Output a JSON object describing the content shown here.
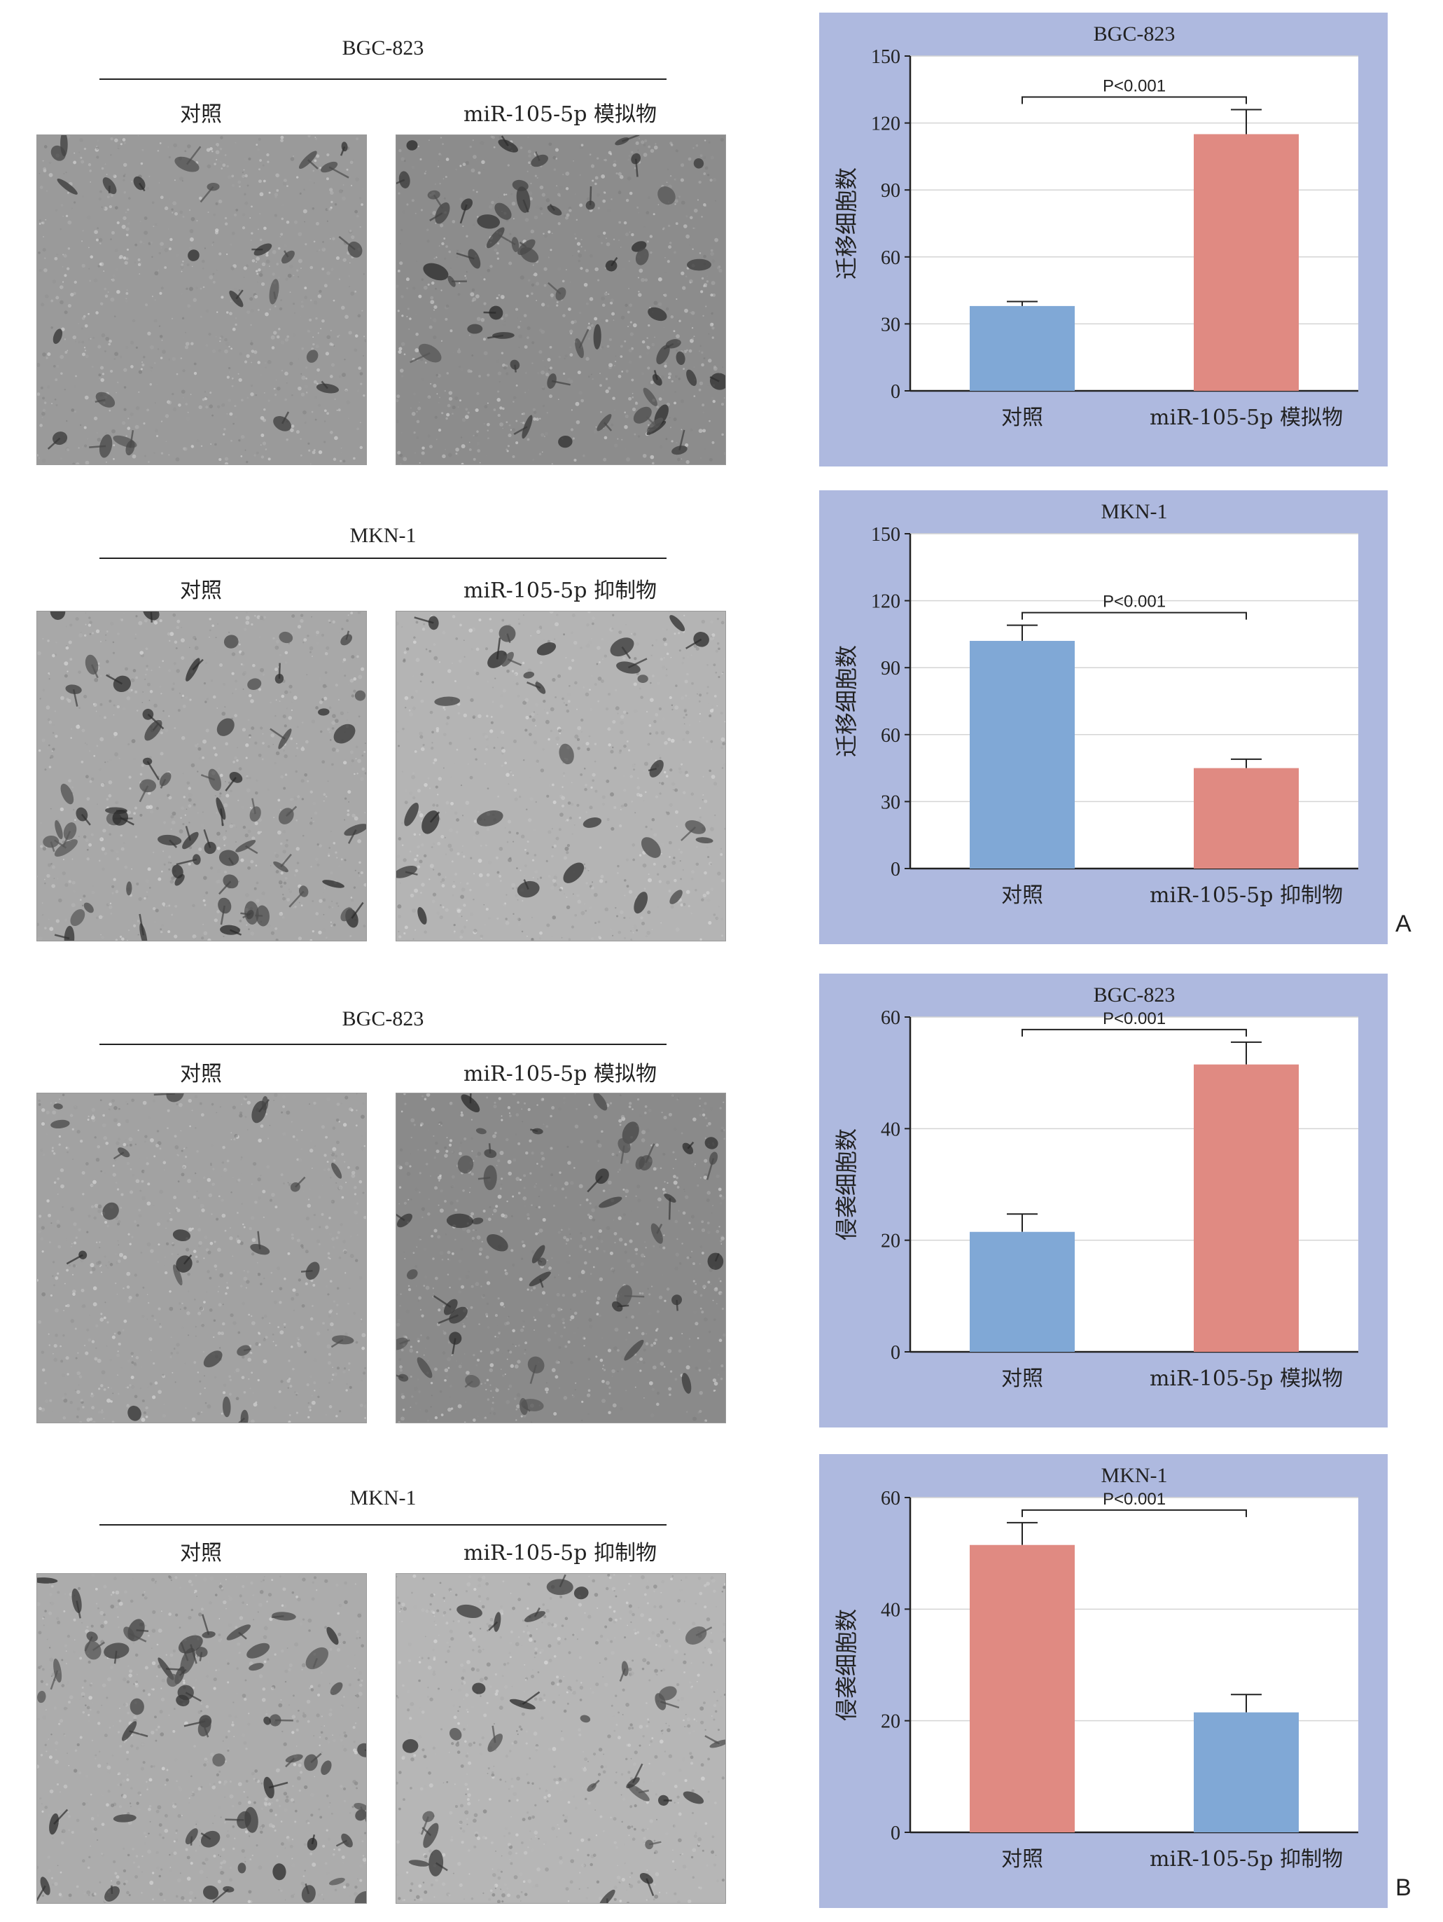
{
  "figure": {
    "rows": [
      {
        "title": "BGC-823",
        "captions": [
          "对照",
          "miR-105-5p 模拟物"
        ],
        "images": [
          {
            "shade": "#9a9a9a",
            "density": 0.35
          },
          {
            "shade": "#8c8c8c",
            "density": 0.75
          }
        ]
      },
      {
        "title": "MKN-1",
        "captions": [
          "对照",
          "miR-105-5p 抑制物"
        ],
        "images": [
          {
            "shade": "#a8a8a8",
            "density": 0.85
          },
          {
            "shade": "#b4b4b4",
            "density": 0.4
          }
        ]
      },
      {
        "title": "BGC-823",
        "captions": [
          "对照",
          "miR-105-5p 模拟物"
        ],
        "images": [
          {
            "shade": "#a2a2a2",
            "density": 0.3
          },
          {
            "shade": "#8a8a8a",
            "density": 0.6
          }
        ]
      },
      {
        "title": "MKN-1",
        "captions": [
          "对照",
          "miR-105-5p 抑制物"
        ],
        "images": [
          {
            "shade": "#acacac",
            "density": 0.8
          },
          {
            "shade": "#b6b6b6",
            "density": 0.4
          }
        ]
      }
    ],
    "panel_labels": [
      "A",
      "B"
    ]
  },
  "chart_data": [
    {
      "type": "bar",
      "title": "BGC-823",
      "ylabel": "迁移细胞数",
      "xlabel": "",
      "ylim": [
        0,
        150
      ],
      "yticks": [
        0,
        30,
        60,
        90,
        120,
        150
      ],
      "categories": [
        "对照",
        "miR-105-5p 模拟物"
      ],
      "values": [
        38,
        115
      ],
      "errors": [
        2,
        11
      ],
      "colors": [
        "#80a8d6",
        "#e08a82"
      ],
      "annotation": "P<0.001",
      "grid": true
    },
    {
      "type": "bar",
      "title": "MKN-1",
      "ylabel": "迁移细胞数",
      "xlabel": "",
      "ylim": [
        0,
        150
      ],
      "yticks": [
        0,
        30,
        60,
        90,
        120,
        150
      ],
      "categories": [
        "对照",
        "miR-105-5p 抑制物"
      ],
      "values": [
        102,
        45
      ],
      "errors": [
        7,
        4
      ],
      "colors": [
        "#80a8d6",
        "#e08a82"
      ],
      "annotation": "P<0.001",
      "grid": true
    },
    {
      "type": "bar",
      "title": "BGC-823",
      "ylabel": "侵袭细胞数",
      "xlabel": "",
      "ylim": [
        0,
        60
      ],
      "yticks": [
        0,
        20,
        40,
        60
      ],
      "categories": [
        "对照",
        "miR-105-5p 模拟物"
      ],
      "values": [
        21.5,
        51.5
      ],
      "errors": [
        3.2,
        4
      ],
      "colors": [
        "#80a8d6",
        "#e08a82"
      ],
      "annotation": "P<0.001",
      "grid": true
    },
    {
      "type": "bar",
      "title": "MKN-1",
      "ylabel": "侵袭细胞数",
      "xlabel": "",
      "ylim": [
        0,
        60
      ],
      "yticks": [
        0,
        20,
        40,
        60
      ],
      "categories": [
        "对照",
        "miR-105-5p 抑制物"
      ],
      "values": [
        51.5,
        21.5
      ],
      "errors": [
        4,
        3.2
      ],
      "colors": [
        "#e08a82",
        "#80a8d6"
      ],
      "annotation": "P<0.001",
      "grid": true
    }
  ]
}
